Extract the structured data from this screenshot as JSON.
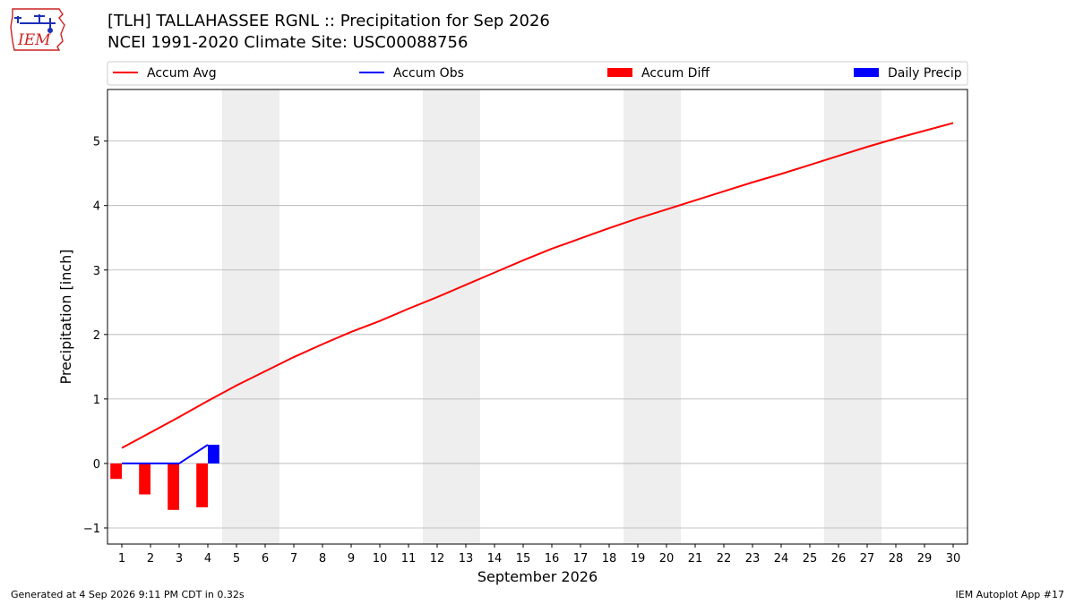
{
  "header": {
    "logo_text": "IEM",
    "title_line1": "[TLH] TALLAHASSEE RGNL :: Precipitation for Sep 2026",
    "title_line2": "NCEI 1991-2020 Climate Site: USC00088756"
  },
  "footer": {
    "generated": "Generated at 4 Sep 2026 9:11 PM CDT in 0.32s",
    "app": "IEM Autoplot App #17"
  },
  "colors": {
    "accum_avg": "#ff0000",
    "accum_obs": "#0000ff",
    "accum_diff": "#ff0000",
    "daily_precip": "#0000ff",
    "weekend_shade": "#eeeeee",
    "grid": "#b0b0b0",
    "logo_red": "#cc2222",
    "logo_blue": "#1a2fb8"
  },
  "chart_data": {
    "type": "line",
    "xlabel": "September 2026",
    "ylabel": "Precipitation [inch]",
    "xlim": [
      0.5,
      30.5
    ],
    "ylim": [
      -1.25,
      5.8
    ],
    "x_ticks": [
      1,
      2,
      3,
      4,
      5,
      6,
      7,
      8,
      9,
      10,
      11,
      12,
      13,
      14,
      15,
      16,
      17,
      18,
      19,
      20,
      21,
      22,
      23,
      24,
      25,
      26,
      27,
      28,
      29,
      30
    ],
    "y_ticks": [
      -1,
      0,
      1,
      2,
      3,
      4,
      5
    ],
    "grid": "horizontal",
    "legend_position": "top, above plot",
    "weekend_shading": [
      [
        5,
        6
      ],
      [
        12,
        13
      ],
      [
        19,
        20
      ],
      [
        26,
        27
      ]
    ],
    "series": [
      {
        "name": "Accum Avg",
        "kind": "line",
        "x": [
          1,
          2,
          3,
          4,
          5,
          6,
          7,
          8,
          9,
          10,
          11,
          12,
          13,
          14,
          15,
          16,
          17,
          18,
          19,
          20,
          21,
          22,
          23,
          24,
          25,
          26,
          27,
          28,
          29,
          30
        ],
        "values": [
          0.24,
          0.48,
          0.72,
          0.97,
          1.21,
          1.43,
          1.65,
          1.85,
          2.04,
          2.21,
          2.4,
          2.58,
          2.77,
          2.96,
          3.15,
          3.33,
          3.49,
          3.65,
          3.8,
          3.94,
          4.08,
          4.22,
          4.36,
          4.49,
          4.63,
          4.77,
          4.91,
          5.04,
          5.16,
          5.28
        ]
      },
      {
        "name": "Accum Obs",
        "kind": "line",
        "x": [
          1,
          2,
          3,
          4
        ],
        "values": [
          0.0,
          0.0,
          0.0,
          0.29
        ]
      },
      {
        "name": "Accum Diff",
        "kind": "bar",
        "x": [
          1,
          2,
          3,
          4
        ],
        "values": [
          -0.24,
          -0.48,
          -0.72,
          -0.68
        ]
      },
      {
        "name": "Daily Precip",
        "kind": "bar",
        "x": [
          1,
          2,
          3,
          4
        ],
        "values": [
          0.0,
          0.0,
          0.0,
          0.29
        ]
      }
    ]
  }
}
